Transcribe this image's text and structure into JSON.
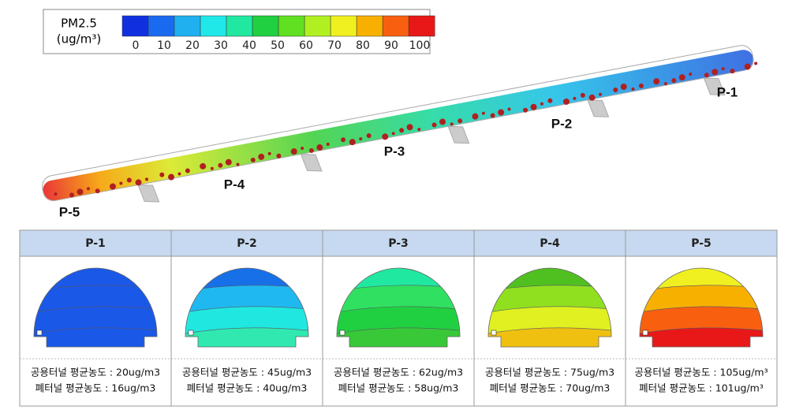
{
  "colorbar": {
    "title": "PM2.5",
    "unit": "(ug/m³)",
    "ticks": [
      0,
      10,
      20,
      30,
      40,
      50,
      60,
      70,
      80,
      90,
      100
    ]
  },
  "tunnel": {
    "labels": [
      "P-1",
      "P-2",
      "P-3",
      "P-4",
      "P-5"
    ]
  },
  "table": {
    "headers": [
      "P-1",
      "P-2",
      "P-3",
      "P-4",
      "P-5"
    ],
    "rows": [
      [
        "공용터널 평균농도 : 20ug/m3",
        "공용터널 평균농도 : 45ug/m3",
        "공용터널 평균농도 : 62ug/m3",
        "공용터널 평균농도 : 75ug/m3",
        "공용터널 평균농도 : 105ug/m³"
      ],
      [
        "폐터널 평균농도 : 16ug/m3",
        "폐터널 평균농도 : 40ug/m3",
        "폐터널 평균농도 : 58ug/m3",
        "폐터널 평균농도 : 70ug/m3",
        "폐터널 평균농도 : 101ug/m³"
      ]
    ]
  }
}
